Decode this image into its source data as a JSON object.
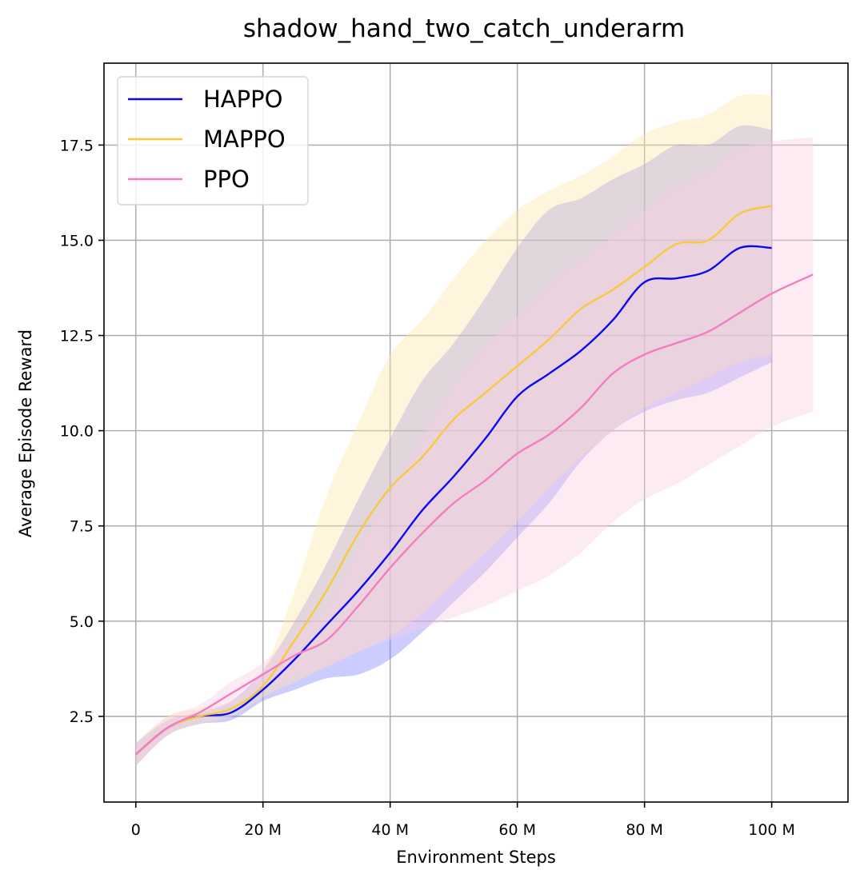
{
  "chart_data": {
    "type": "line",
    "title": "shadow_hand_two_catch_underarm",
    "xlabel": "Environment Steps",
    "ylabel": "Average Episode Reward",
    "xlim": [
      -5,
      112
    ],
    "ylim": [
      0.25,
      19.65
    ],
    "x_unit": "M",
    "x_ticks": [
      {
        "value": 0,
        "label": "0"
      },
      {
        "value": 20,
        "label": "20 M"
      },
      {
        "value": 40,
        "label": "40 M"
      },
      {
        "value": 60,
        "label": "60 M"
      },
      {
        "value": 80,
        "label": "80 M"
      },
      {
        "value": 100,
        "label": "100 M"
      }
    ],
    "y_ticks": [
      {
        "value": 2.5,
        "label": "2.5"
      },
      {
        "value": 5.0,
        "label": "5.0"
      },
      {
        "value": 7.5,
        "label": "7.5"
      },
      {
        "value": 10.0,
        "label": "10.0"
      },
      {
        "value": 12.5,
        "label": "12.5"
      },
      {
        "value": 15.0,
        "label": "15.0"
      },
      {
        "value": 17.5,
        "label": "17.5"
      }
    ],
    "grid": true,
    "legend_position": "top-left",
    "series": [
      {
        "name": "HAPPO",
        "color": "#0a0af0",
        "band_color": "#8080ff",
        "x": [
          0,
          5,
          10,
          15,
          20,
          25,
          30,
          35,
          40,
          45,
          50,
          55,
          60,
          65,
          70,
          75,
          80,
          85,
          90,
          95,
          100
        ],
        "values": [
          1.5,
          2.2,
          2.5,
          2.6,
          3.2,
          4.0,
          4.9,
          5.8,
          6.8,
          7.9,
          8.8,
          9.8,
          10.9,
          11.5,
          12.1,
          12.9,
          13.9,
          14.0,
          14.2,
          14.8,
          14.8
        ],
        "lower": [
          1.2,
          2.0,
          2.3,
          2.4,
          2.9,
          3.2,
          3.5,
          3.6,
          4.0,
          4.7,
          5.5,
          6.3,
          7.2,
          8.1,
          9.2,
          10.0,
          10.5,
          10.8,
          11.0,
          11.4,
          11.8
        ],
        "upper": [
          1.8,
          2.4,
          2.6,
          2.9,
          3.7,
          5.0,
          6.5,
          8.2,
          9.8,
          11.3,
          12.3,
          13.5,
          14.8,
          15.8,
          16.1,
          16.6,
          17.0,
          17.5,
          17.5,
          18.0,
          17.9
        ]
      },
      {
        "name": "MAPPO",
        "color": "#f9c93c",
        "band_color": "#ffe7a8",
        "x": [
          0,
          5,
          10,
          15,
          20,
          25,
          30,
          35,
          40,
          45,
          50,
          55,
          60,
          65,
          70,
          75,
          80,
          85,
          90,
          95,
          100
        ],
        "values": [
          1.5,
          2.2,
          2.5,
          2.7,
          3.3,
          4.5,
          5.8,
          7.3,
          8.5,
          9.3,
          10.3,
          11.0,
          11.7,
          12.4,
          13.2,
          13.7,
          14.3,
          14.9,
          15.0,
          15.7,
          15.9
        ],
        "lower": [
          1.2,
          2.0,
          2.3,
          2.5,
          3.0,
          3.4,
          3.8,
          4.2,
          4.6,
          5.2,
          6.0,
          6.8,
          7.6,
          8.5,
          9.3,
          10.0,
          10.6,
          11.0,
          11.4,
          11.8,
          12.0
        ],
        "upper": [
          1.8,
          2.5,
          2.7,
          2.9,
          3.7,
          5.8,
          8.3,
          10.2,
          12.0,
          12.9,
          14.0,
          15.0,
          15.8,
          16.3,
          16.7,
          17.2,
          17.8,
          18.1,
          18.3,
          18.8,
          18.8
        ]
      },
      {
        "name": "PPO",
        "color": "#f47cc0",
        "band_color": "#fbcce4",
        "x": [
          0,
          5,
          10,
          15,
          20,
          25,
          30,
          35,
          40,
          45,
          50,
          55,
          60,
          65,
          70,
          75,
          80,
          85,
          90,
          95,
          100,
          106.5
        ],
        "values": [
          1.5,
          2.2,
          2.6,
          3.1,
          3.6,
          4.1,
          4.5,
          5.4,
          6.4,
          7.3,
          8.1,
          8.7,
          9.4,
          9.9,
          10.6,
          11.5,
          12.0,
          12.3,
          12.6,
          13.1,
          13.6,
          14.1
        ],
        "lower": [
          1.2,
          2.0,
          2.4,
          2.8,
          3.2,
          3.5,
          3.8,
          4.2,
          4.5,
          4.8,
          5.1,
          5.4,
          5.8,
          6.2,
          6.8,
          7.6,
          8.2,
          8.6,
          9.1,
          9.6,
          10.1,
          10.5
        ],
        "upper": [
          1.8,
          2.5,
          2.8,
          3.4,
          3.9,
          4.7,
          5.4,
          6.9,
          8.4,
          9.8,
          11.2,
          12.2,
          13.0,
          13.8,
          14.5,
          15.1,
          15.8,
          16.4,
          16.8,
          17.4,
          17.6,
          17.7
        ]
      }
    ]
  }
}
